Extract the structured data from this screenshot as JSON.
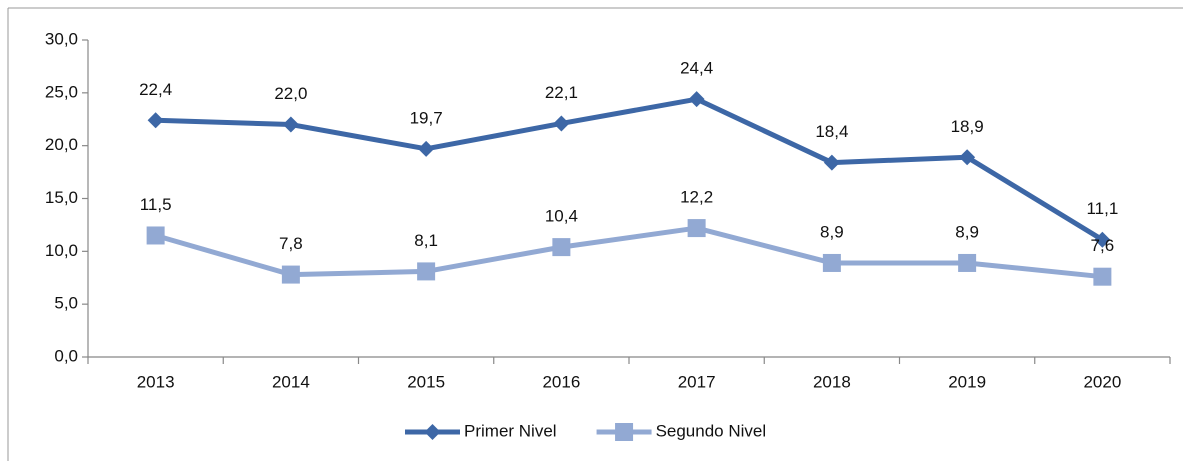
{
  "chart_data": {
    "type": "line",
    "categories": [
      "2013",
      "2014",
      "2015",
      "2016",
      "2017",
      "2018",
      "2019",
      "2020"
    ],
    "series": [
      {
        "name": "Primer Nivel",
        "color": "#3d67a6",
        "marker": "diamond",
        "values": [
          22.4,
          22.0,
          19.7,
          22.1,
          24.4,
          18.4,
          18.9,
          11.1
        ],
        "value_labels": [
          "22,4",
          "22,0",
          "19,7",
          "22,1",
          "24,4",
          "18,4",
          "18,9",
          "11,1"
        ]
      },
      {
        "name": "Segundo Nivel",
        "color": "#92a9d3",
        "marker": "square",
        "values": [
          11.5,
          7.8,
          8.1,
          10.4,
          12.2,
          8.9,
          8.9,
          7.6
        ],
        "value_labels": [
          "11,5",
          "7,8",
          "8,1",
          "10,4",
          "12,2",
          "8,9",
          "8,9",
          "7,6"
        ]
      }
    ],
    "ylim": [
      0,
      30
    ],
    "yticks": [
      {
        "value": 0,
        "label": "0,0"
      },
      {
        "value": 5,
        "label": "5,0"
      },
      {
        "value": 10,
        "label": "10,0"
      },
      {
        "value": 15,
        "label": "15,0"
      },
      {
        "value": 20,
        "label": "20,0"
      },
      {
        "value": 25,
        "label": "25,0"
      },
      {
        "value": 30,
        "label": "30,0"
      }
    ],
    "grid": false,
    "legend": "bottom"
  }
}
